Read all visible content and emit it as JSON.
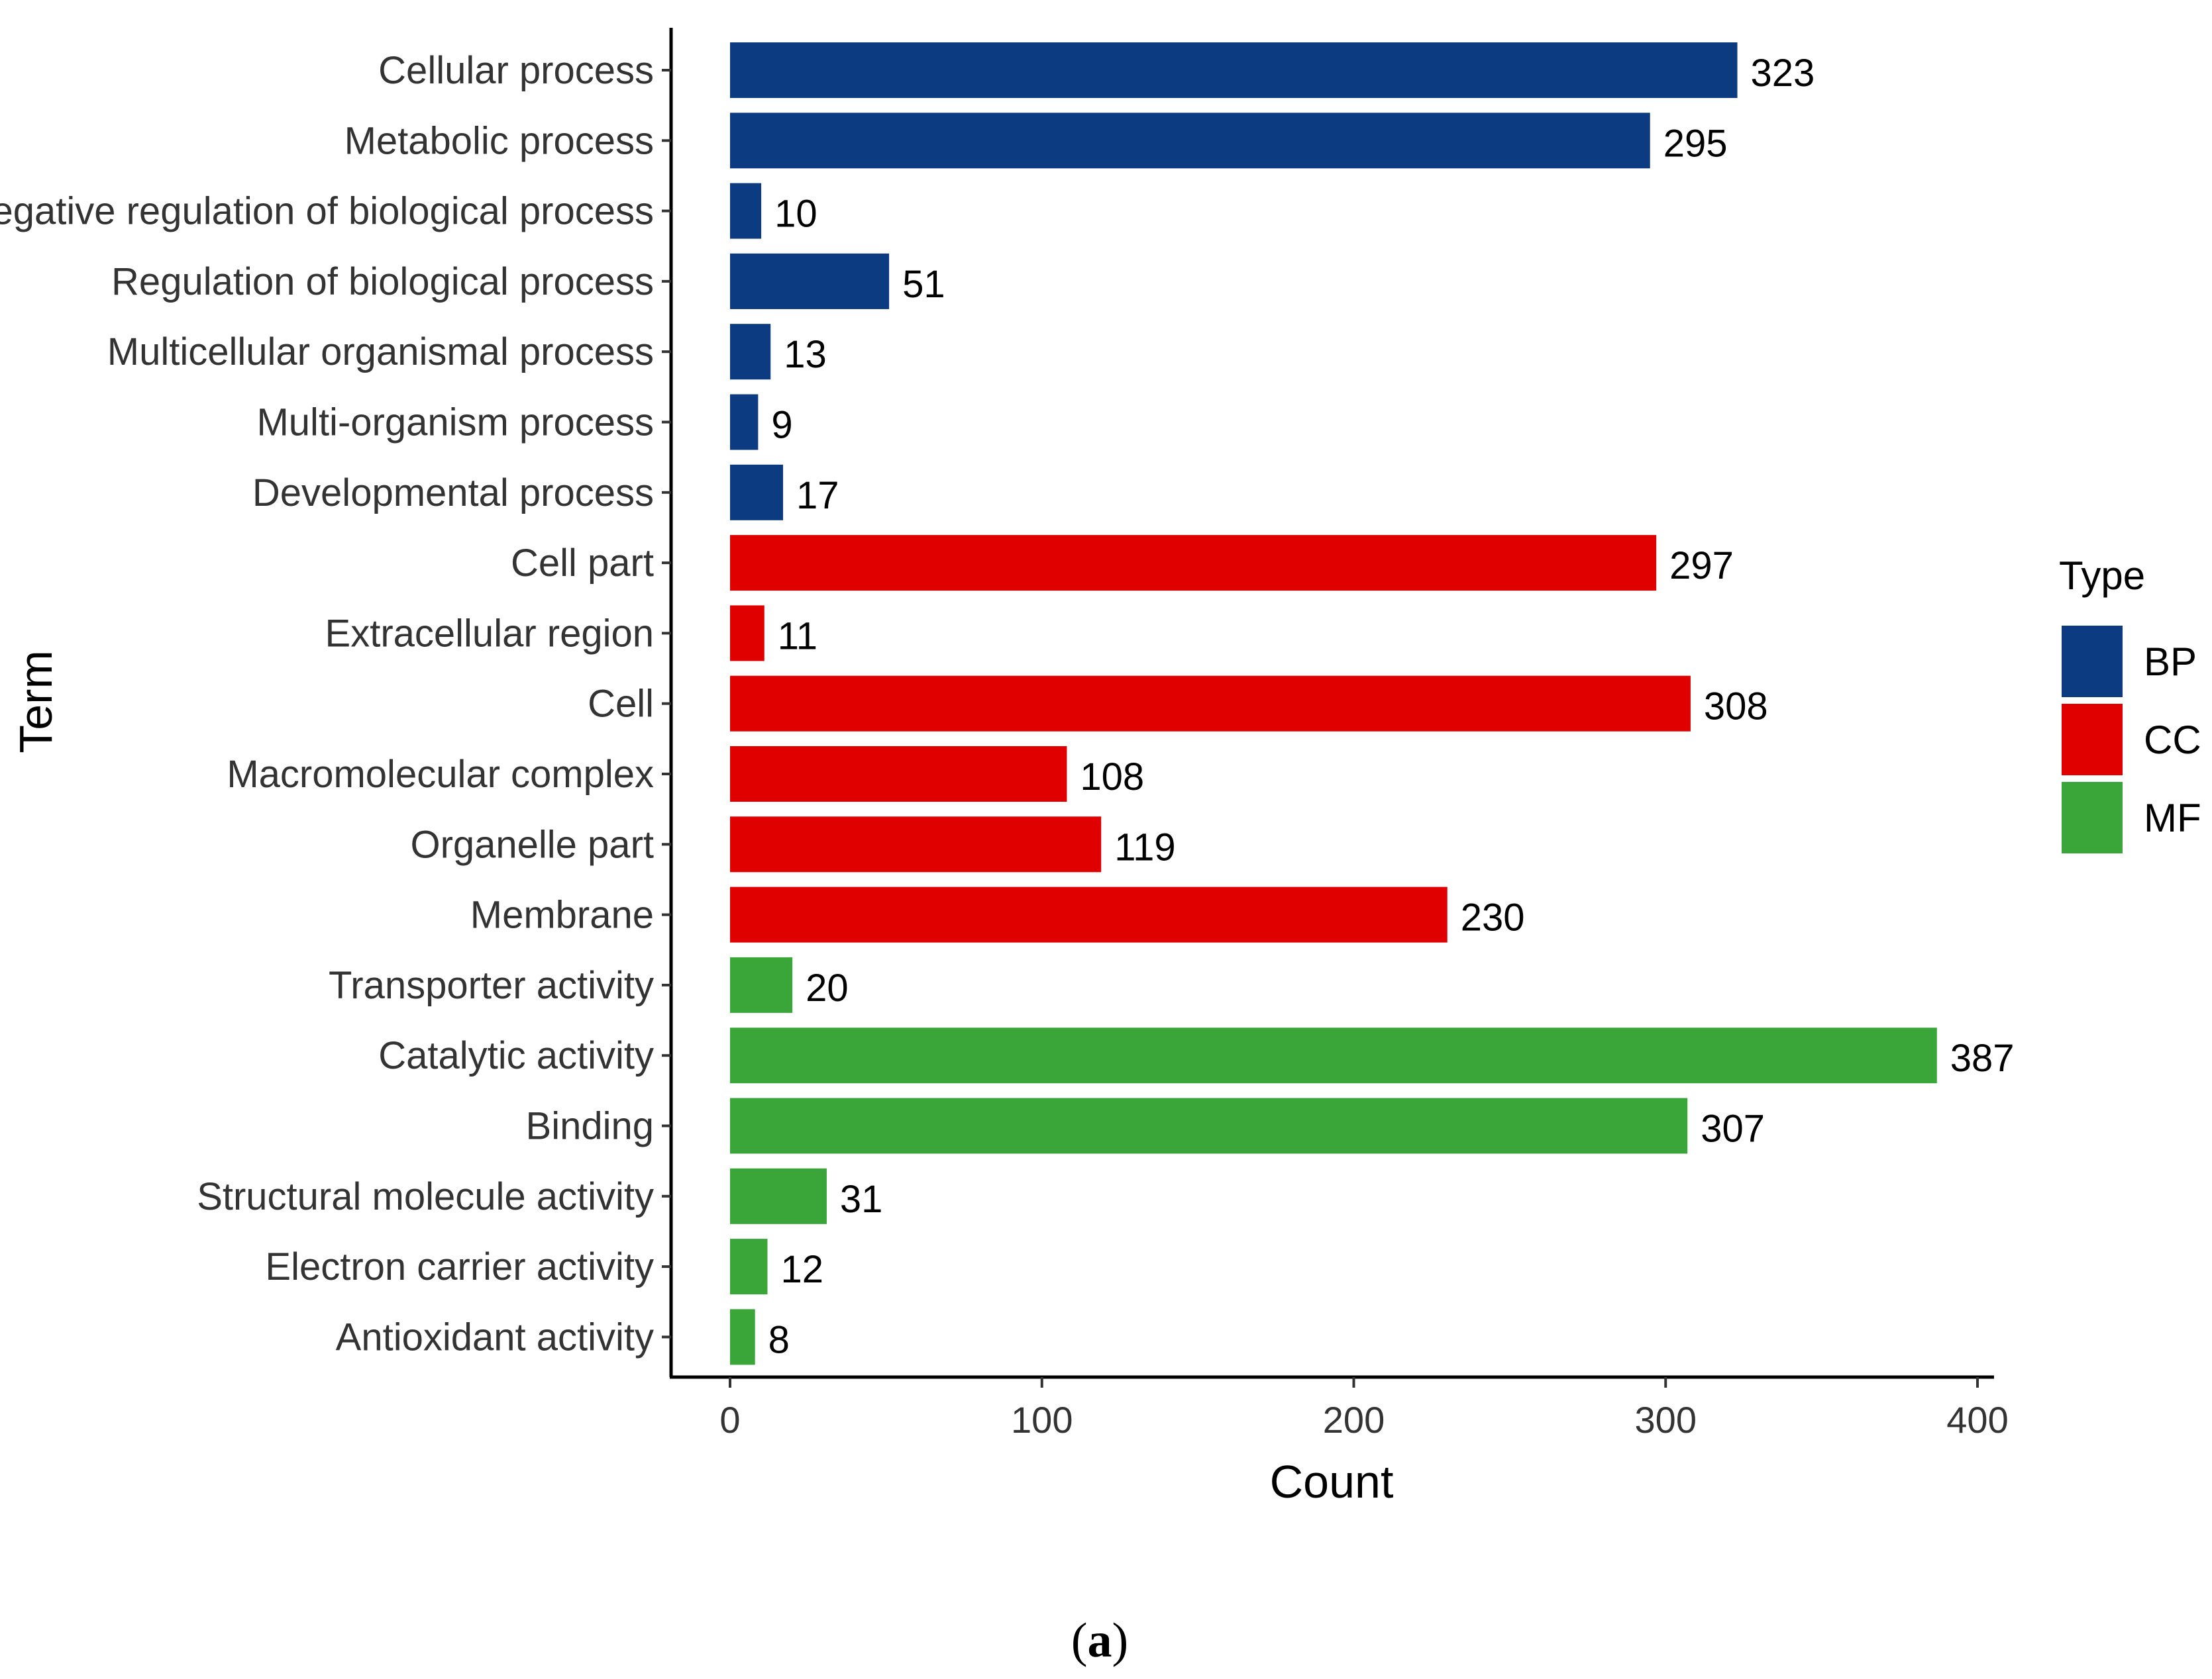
{
  "chart_data": {
    "type": "bar",
    "orientation": "horizontal",
    "categories": [
      "Cellular process",
      "Metabolic process",
      "Negative regulation of biological process",
      "Regulation of biological process",
      "Multicellular organismal process",
      "Multi-organism process",
      "Developmental process",
      "Cell part",
      "Extracellular region",
      "Cell",
      "Macromolecular complex",
      "Organelle part",
      "Membrane",
      "Transporter activity",
      "Catalytic activity",
      "Binding",
      "Structural molecule activity",
      "Electron carrier activity",
      "Antioxidant activity"
    ],
    "values": [
      323,
      295,
      10,
      51,
      13,
      9,
      17,
      297,
      11,
      308,
      108,
      119,
      230,
      20,
      387,
      307,
      31,
      12,
      8
    ],
    "groups": [
      "BP",
      "BP",
      "BP",
      "BP",
      "BP",
      "BP",
      "BP",
      "CC",
      "CC",
      "CC",
      "CC",
      "CC",
      "CC",
      "MF",
      "MF",
      "MF",
      "MF",
      "MF",
      "MF"
    ],
    "xlabel": "Count",
    "ylabel": "Term",
    "xlim": [
      -19,
      405
    ],
    "xticks": [
      0,
      100,
      200,
      300,
      400
    ],
    "grid": false,
    "legend": {
      "title": "Type",
      "position": "right",
      "entries": [
        {
          "name": "BP",
          "color": "#0d3b82"
        },
        {
          "name": "CC",
          "color": "#e00000"
        },
        {
          "name": "MF",
          "color": "#3aa63a"
        }
      ]
    },
    "caption_open": "(",
    "caption_letter": "a",
    "caption_close": ")"
  }
}
